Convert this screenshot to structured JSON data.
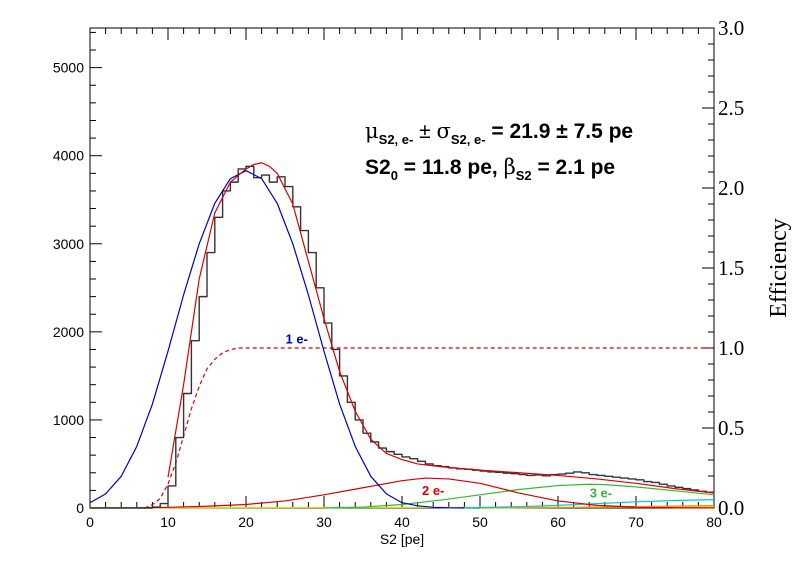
{
  "chart_data": {
    "type": "line",
    "xlabel": "S2 [pe]",
    "ylabel_right": "Efficiency",
    "xlim": [
      0,
      80
    ],
    "ylim": [
      0,
      5450
    ],
    "ylim_right": [
      0,
      3.0
    ],
    "x_ticks": [
      "0",
      "10",
      "20",
      "30",
      "40",
      "50",
      "60",
      "70",
      "80"
    ],
    "y_ticks_left": [
      "0",
      "1000",
      "2000",
      "3000",
      "4000",
      "5000"
    ],
    "y_ticks_right": [
      "0.0",
      "0.5",
      "1.0",
      "1.5",
      "2.0",
      "2.5",
      "3.0"
    ],
    "annotation": {
      "mu": "μ",
      "mu_sub": "S2, e-",
      "pm1": " ± ",
      "sigma": "σ",
      "sigma_sub": "S2, e-",
      "value1": " = 21.9 ± 7.5 pe",
      "s2": "S2",
      "s2_sub": "0",
      "value2": " = 11.8 pe,  ",
      "beta": "β",
      "beta_sub": "S2",
      "value3": " = 2.1 pe"
    },
    "series_labels": [
      {
        "text": "1 e-",
        "color": "#0000cc",
        "x": 26.5,
        "y": 1870
      },
      {
        "text": "2 e-",
        "color": "#dd0000",
        "x": 44,
        "y": 150
      },
      {
        "text": "3 e-",
        "color": "#33bb33",
        "x": 65.5,
        "y": 120
      }
    ],
    "series": [
      {
        "id": "data-histogram",
        "style": "step",
        "color": "#333333",
        "x": [
          0,
          1,
          2,
          3,
          4,
          5,
          6,
          7,
          8,
          9,
          10,
          11,
          12,
          13,
          14,
          15,
          16,
          17,
          18,
          19,
          20,
          21,
          22,
          23,
          24,
          25,
          26,
          27,
          28,
          29,
          30,
          31,
          32,
          33,
          34,
          35,
          36,
          37,
          38,
          39,
          40,
          41,
          42,
          43,
          44,
          45,
          46,
          47,
          48,
          49,
          50,
          51,
          52,
          53,
          54,
          55,
          56,
          57,
          58,
          59,
          60,
          61,
          62,
          63,
          64,
          65,
          66,
          67,
          68,
          69,
          70,
          71,
          72,
          73,
          74,
          75,
          76,
          77,
          78,
          79
        ],
        "values": [
          0,
          0,
          0,
          0,
          0,
          0,
          0,
          0,
          10,
          50,
          250,
          800,
          1300,
          1900,
          2400,
          2900,
          3300,
          3600,
          3700,
          3850,
          3880,
          3750,
          3780,
          3700,
          3760,
          3650,
          3420,
          3150,
          2900,
          2500,
          2100,
          1800,
          1500,
          1200,
          1000,
          850,
          750,
          680,
          640,
          610,
          580,
          560,
          530,
          500,
          480,
          470,
          455,
          445,
          440,
          430,
          420,
          410,
          405,
          395,
          390,
          380,
          370,
          375,
          365,
          380,
          385,
          395,
          410,
          400,
          380,
          370,
          360,
          350,
          340,
          330,
          320,
          300,
          290,
          270,
          250,
          235,
          220,
          205,
          190,
          180
        ]
      },
      {
        "id": "total-fit",
        "style": "line",
        "color": "#dd0000",
        "x": [
          10,
          12,
          14,
          16,
          18,
          20,
          21,
          22,
          23,
          24,
          26,
          28,
          30,
          32,
          34,
          36,
          38,
          40,
          42,
          44,
          46,
          50,
          55,
          60,
          65,
          70,
          75,
          80
        ],
        "values": [
          350,
          1400,
          2600,
          3350,
          3700,
          3850,
          3900,
          3920,
          3880,
          3800,
          3450,
          2800,
          2150,
          1550,
          1100,
          780,
          620,
          550,
          500,
          480,
          460,
          430,
          400,
          370,
          330,
          280,
          220,
          170
        ]
      },
      {
        "id": "one-electron",
        "style": "line",
        "color": "#0000cc",
        "x": [
          0,
          2,
          4,
          6,
          8,
          10,
          12,
          14,
          16,
          18,
          20,
          22,
          24,
          26,
          28,
          30,
          32,
          34,
          36,
          38,
          40,
          42,
          44,
          46,
          48
        ],
        "values": [
          60,
          160,
          360,
          700,
          1180,
          1780,
          2420,
          3000,
          3460,
          3740,
          3830,
          3740,
          3460,
          3000,
          2420,
          1780,
          1180,
          700,
          360,
          160,
          60,
          25,
          8,
          2,
          0
        ]
      },
      {
        "id": "two-electron",
        "style": "line",
        "color": "#dd0000",
        "x": [
          0,
          5,
          10,
          15,
          20,
          25,
          30,
          35,
          40,
          43,
          46,
          50,
          55,
          60,
          65,
          70,
          75,
          80
        ],
        "values": [
          0,
          2,
          8,
          20,
          40,
          80,
          150,
          230,
          310,
          340,
          330,
          280,
          170,
          80,
          30,
          10,
          3,
          1
        ]
      },
      {
        "id": "three-electron",
        "style": "line",
        "color": "#33bb33",
        "x": [
          30,
          35,
          40,
          45,
          50,
          55,
          60,
          64,
          66,
          70,
          75,
          80
        ],
        "values": [
          0,
          10,
          40,
          90,
          150,
          210,
          255,
          270,
          265,
          240,
          195,
          150
        ]
      },
      {
        "id": "four-electron",
        "style": "line",
        "color": "#00cccc",
        "x": [
          45,
          50,
          55,
          60,
          65,
          70,
          75,
          80
        ],
        "values": [
          0,
          5,
          15,
          30,
          50,
          70,
          85,
          95
        ]
      },
      {
        "id": "five-electron",
        "style": "line",
        "color": "#ff8800",
        "x": [
          50,
          55,
          60,
          65,
          70,
          75,
          80
        ],
        "values": [
          0,
          2,
          5,
          10,
          16,
          22,
          28
        ]
      },
      {
        "id": "six-electron",
        "style": "line",
        "color": "#dddd00",
        "x": [
          0,
          10,
          20,
          30,
          40,
          50,
          60,
          70,
          80
        ],
        "values": [
          2,
          3,
          4,
          5,
          6,
          7,
          8,
          9,
          10
        ]
      },
      {
        "id": "efficiency",
        "style": "dashed",
        "color": "#dd0000",
        "axis": "right",
        "x": [
          7,
          8,
          9,
          10,
          11,
          12,
          13,
          14,
          15,
          16,
          17,
          18,
          19,
          20,
          22,
          25,
          30,
          40,
          50,
          60,
          70,
          80
        ],
        "values": [
          0.0,
          0.02,
          0.06,
          0.15,
          0.28,
          0.45,
          0.62,
          0.76,
          0.87,
          0.93,
          0.97,
          0.99,
          1.0,
          1.0,
          1.0,
          1.0,
          1.0,
          1.0,
          1.0,
          1.0,
          1.0,
          1.0
        ]
      }
    ]
  }
}
